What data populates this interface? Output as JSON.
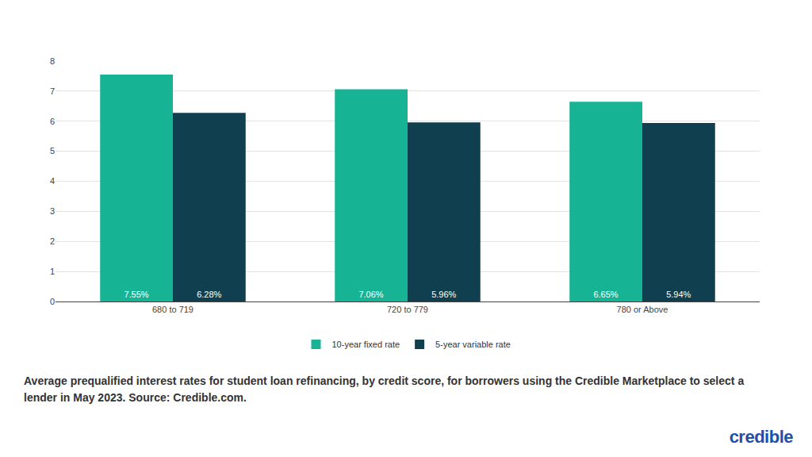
{
  "chart_data": {
    "type": "bar",
    "categories": [
      "680 to 719",
      "720 to 779",
      "780 or Above"
    ],
    "series": [
      {
        "name": "10-year fixed rate",
        "color": "#16b395",
        "values": [
          7.55,
          7.06,
          6.65
        ],
        "value_labels": [
          "7.55%",
          "7.06%",
          "6.65%"
        ]
      },
      {
        "name": "5-year variable rate",
        "color": "#10404f",
        "values": [
          6.28,
          5.96,
          5.94
        ],
        "value_labels": [
          "6.28%",
          "5.96%",
          "5.94%"
        ]
      }
    ],
    "ylim": [
      0,
      8
    ],
    "yticks": [
      0,
      1,
      2,
      3,
      4,
      5,
      6,
      7,
      8
    ],
    "grid": true,
    "legend": "bottom",
    "data_labels": true,
    "caption": "Average prequalified interest rates for student loan refinancing, by credit score, for borrowers using the Credible Marketplace to select a lender in May 2023. Source: Credible.com.",
    "brand": "credible"
  }
}
